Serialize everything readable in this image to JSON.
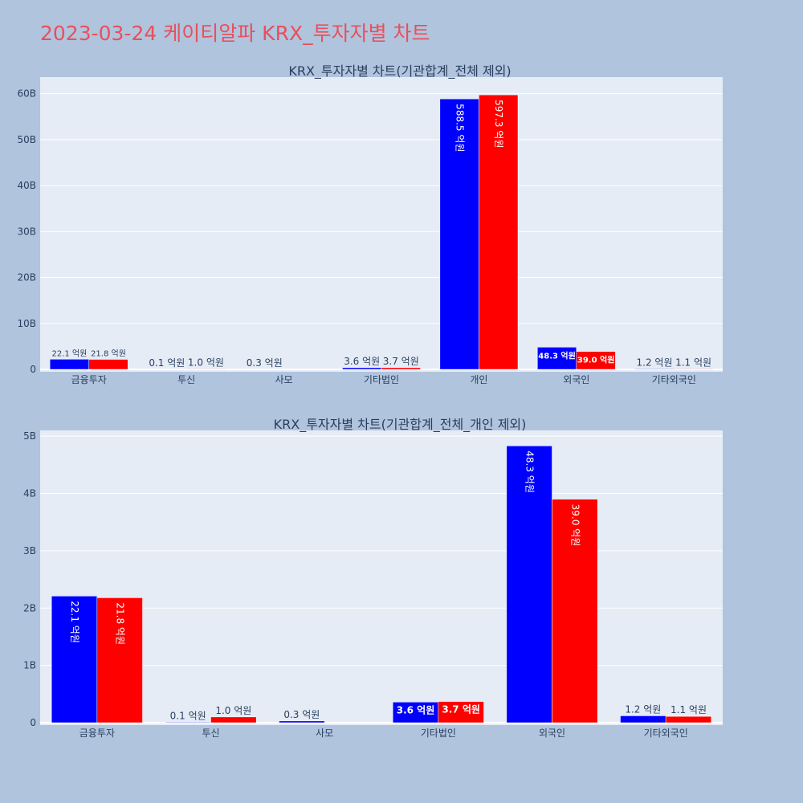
{
  "title": "2023-03-24 케이티알파 KRX_투자자별 차트",
  "colors": {
    "title": "#e8505b",
    "page_bg": "#b0c4de",
    "plot_bg": "#e5ecf6",
    "series1": "#0000ff",
    "series2": "#ff0000"
  },
  "chart_data": [
    {
      "type": "bar",
      "title": "KRX_투자자별 차트(기관합계_전체 제외)",
      "categories": [
        "금융투자",
        "투신",
        "사모",
        "기타법인",
        "개인",
        "외국인",
        "기타외국인"
      ],
      "series": [
        {
          "values": [
            2210000000,
            10000000,
            30000000,
            360000000,
            58850000000,
            4830000000,
            120000000
          ],
          "labels": [
            "22.1 억원",
            "0.1 억원",
            "0.3 억원",
            "3.6 억원",
            "588.5 억원",
            "48.3 억원",
            "1.2 억원"
          ]
        },
        {
          "values": [
            2180000000,
            100000000,
            0,
            370000000,
            59730000000,
            3900000000,
            110000000
          ],
          "labels": [
            "21.8 억원",
            "1.0 억원",
            "",
            "3.7 억원",
            "597.3 억원",
            "39.0 억원",
            "1.1 억원"
          ]
        }
      ],
      "y_ticks": [
        {
          "value": 0,
          "label": "0"
        },
        {
          "value": 10000000000,
          "label": "10B"
        },
        {
          "value": 20000000000,
          "label": "20B"
        },
        {
          "value": 30000000000,
          "label": "30B"
        },
        {
          "value": 40000000000,
          "label": "40B"
        },
        {
          "value": 50000000000,
          "label": "50B"
        },
        {
          "value": 60000000000,
          "label": "60B"
        }
      ],
      "ylim": [
        0,
        63600000000
      ],
      "grid": true,
      "legend": "none"
    },
    {
      "type": "bar",
      "title": "KRX_투자자별 차트(기관합계_전체_개인 제외)",
      "categories": [
        "금융투자",
        "투신",
        "사모",
        "기타법인",
        "외국인",
        "기타외국인"
      ],
      "series": [
        {
          "values": [
            2210000000,
            10000000,
            30000000,
            360000000,
            4830000000,
            120000000
          ],
          "labels": [
            "22.1 억원",
            "0.1 억원",
            "0.3 억원",
            "3.6 억원",
            "48.3 억원",
            "1.2 억원"
          ]
        },
        {
          "values": [
            2180000000,
            100000000,
            0,
            370000000,
            3900000000,
            110000000
          ],
          "labels": [
            "21.8 억원",
            "1.0 억원",
            "",
            "3.7 억원",
            "39.0 억원",
            "1.1 억원"
          ]
        }
      ],
      "y_ticks": [
        {
          "value": 0,
          "label": "0"
        },
        {
          "value": 1000000000,
          "label": "1B"
        },
        {
          "value": 2000000000,
          "label": "2B"
        },
        {
          "value": 3000000000,
          "label": "3B"
        },
        {
          "value": 4000000000,
          "label": "4B"
        },
        {
          "value": 5000000000,
          "label": "5B"
        }
      ],
      "ylim": [
        0,
        5100000000
      ],
      "grid": true,
      "legend": "none"
    }
  ]
}
